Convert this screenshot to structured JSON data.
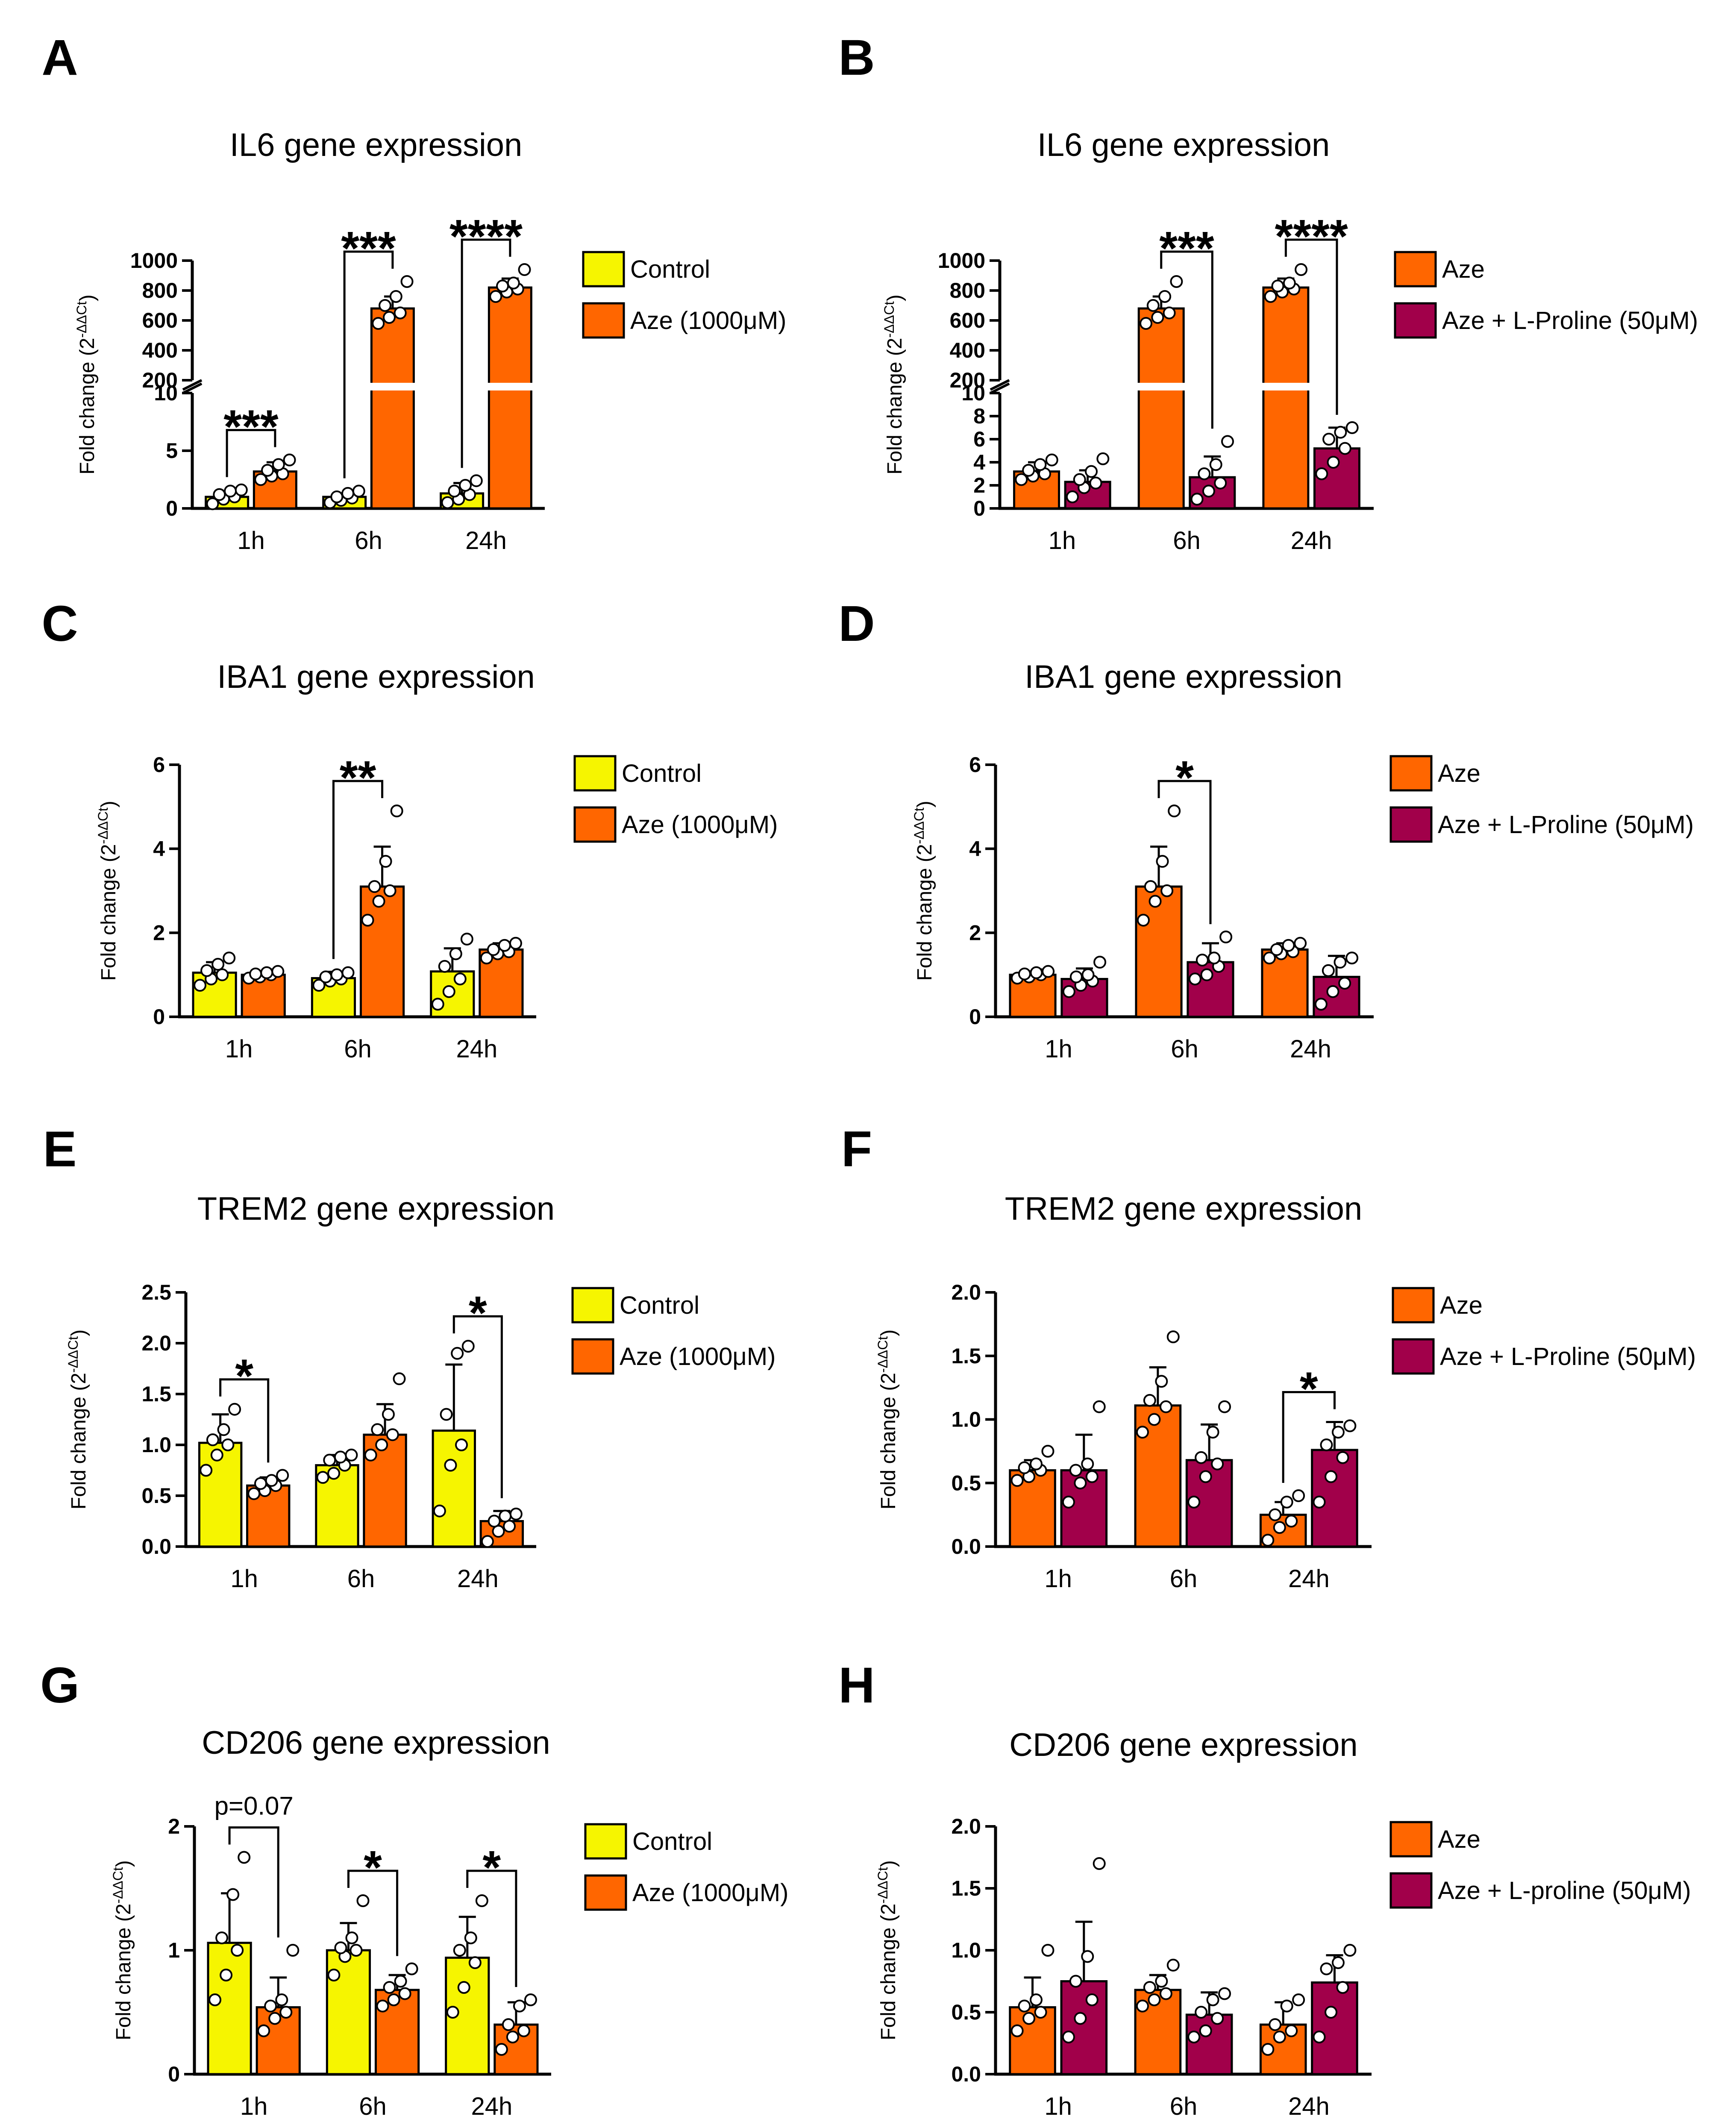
{
  "colors": {
    "control": "#f6f500",
    "aze": "#ff6600",
    "proline": "#a1004a",
    "axis": "#000000",
    "point_fill": "#ffffff"
  },
  "y_axis_label": "Fold change (2",
  "y_axis_label_superscript": "-ΔΔCt",
  "y_axis_label_end": ")",
  "chart_data": [
    {
      "panel": "A",
      "type": "bar",
      "title": "IL6 gene expression",
      "categories": [
        "1h",
        "6h",
        "24h"
      ],
      "ylabel": "Fold change (2^-ΔΔCt)",
      "broken_axis": true,
      "ylim_lower": [
        0,
        10
      ],
      "yticks_lower": [
        0,
        5,
        10
      ],
      "ylim_upper": [
        200,
        1000
      ],
      "yticks_upper": [
        200,
        400,
        600,
        800,
        1000
      ],
      "series": [
        {
          "name": "Control",
          "color_key": "control",
          "values": [
            1.0,
            1.0,
            1.3
          ],
          "errors": [
            0.5,
            0.3,
            0.9
          ],
          "points": [
            [
              0.4,
              0.8,
              1.0,
              1.2,
              1.5,
              1.6
            ],
            [
              0.5,
              0.7,
              0.9,
              1.0,
              1.3,
              1.5
            ],
            [
              0.5,
              0.8,
              1.2,
              1.5,
              2.0,
              2.4
            ]
          ]
        },
        {
          "name": "Aze (1000μM)",
          "color_key": "aze",
          "values": [
            3.2,
            680,
            820
          ],
          "errors": [
            0.8,
            80,
            60
          ],
          "points": [
            [
              2.5,
              2.8,
              3.0,
              3.3,
              3.8,
              4.2
            ],
            [
              580,
              620,
              650,
              700,
              760,
              860
            ],
            [
              760,
              790,
              810,
              830,
              850,
              940
            ]
          ]
        }
      ],
      "comparisons": [
        {
          "group": 0,
          "label": "***"
        },
        {
          "group": 1,
          "label": "***"
        },
        {
          "group": 2,
          "label": "****"
        }
      ]
    },
    {
      "panel": "B",
      "type": "bar",
      "title": "IL6 gene expression",
      "categories": [
        "1h",
        "6h",
        "24h"
      ],
      "ylabel": "Fold change (2^-ΔΔCt)",
      "broken_axis": true,
      "ylim_lower": [
        0,
        10
      ],
      "yticks_lower": [
        0,
        2,
        4,
        6,
        8,
        10
      ],
      "ylim_upper": [
        200,
        1000
      ],
      "yticks_upper": [
        200,
        400,
        600,
        800,
        1000
      ],
      "series": [
        {
          "name": "Aze",
          "color_key": "aze",
          "values": [
            3.2,
            680,
            820
          ],
          "errors": [
            0.8,
            80,
            60
          ],
          "points": [
            [
              2.5,
              2.8,
              3.0,
              3.3,
              3.8,
              4.2
            ],
            [
              580,
              620,
              650,
              700,
              760,
              860
            ],
            [
              760,
              790,
              810,
              830,
              850,
              940
            ]
          ]
        },
        {
          "name": "Aze + L-Proline (50μM)",
          "color_key": "proline",
          "values": [
            2.3,
            2.7,
            5.2
          ],
          "errors": [
            1.0,
            1.8,
            1.8
          ],
          "points": [
            [
              1.0,
              1.8,
              2.2,
              2.5,
              3.2,
              4.3
            ],
            [
              0.8,
              1.5,
              2.2,
              3.0,
              3.8,
              5.8
            ],
            [
              3.0,
              4.0,
              5.2,
              6.0,
              6.6,
              7.0
            ]
          ]
        }
      ],
      "comparisons": [
        {
          "group": 1,
          "label": "***"
        },
        {
          "group": 2,
          "label": "****"
        }
      ]
    },
    {
      "panel": "C",
      "type": "bar",
      "title": "IBA1 gene expression",
      "categories": [
        "1h",
        "6h",
        "24h"
      ],
      "ylabel": "Fold change (2^-ΔΔCt)",
      "ylim": [
        0,
        6
      ],
      "yticks": [
        0,
        2,
        4,
        6
      ],
      "series": [
        {
          "name": "Control",
          "color_key": "control",
          "values": [
            1.05,
            0.92,
            1.08
          ],
          "errors": [
            0.25,
            0.15,
            0.55
          ],
          "points": [
            [
              0.75,
              0.9,
              1.0,
              1.1,
              1.25,
              1.4
            ],
            [
              0.75,
              0.85,
              0.9,
              0.95,
              1.0,
              1.05
            ],
            [
              0.3,
              0.6,
              0.9,
              1.2,
              1.5,
              1.85
            ]
          ]
        },
        {
          "name": "Aze (1000μM)",
          "color_key": "aze",
          "values": [
            1.0,
            3.1,
            1.6
          ],
          "errors": [
            0.08,
            0.95,
            0.15
          ],
          "points": [
            [
              0.92,
              0.95,
              1.0,
              1.02,
              1.05,
              1.08
            ],
            [
              2.3,
              2.75,
              3.0,
              3.1,
              3.7,
              4.9
            ],
            [
              1.4,
              1.5,
              1.55,
              1.6,
              1.7,
              1.75
            ]
          ]
        }
      ],
      "comparisons": [
        {
          "group": 1,
          "label": "**"
        }
      ]
    },
    {
      "panel": "D",
      "type": "bar",
      "title": "IBA1 gene expression",
      "categories": [
        "1h",
        "6h",
        "24h"
      ],
      "ylabel": "Fold change (2^-ΔΔCt)",
      "ylim": [
        0,
        6
      ],
      "yticks": [
        0,
        2,
        4,
        6
      ],
      "series": [
        {
          "name": "Aze",
          "color_key": "aze",
          "values": [
            1.0,
            3.1,
            1.6
          ],
          "errors": [
            0.08,
            0.95,
            0.15
          ],
          "points": [
            [
              0.92,
              0.95,
              1.0,
              1.02,
              1.05,
              1.08
            ],
            [
              2.3,
              2.75,
              3.0,
              3.1,
              3.7,
              4.9
            ],
            [
              1.4,
              1.5,
              1.55,
              1.6,
              1.7,
              1.75
            ]
          ]
        },
        {
          "name": "Aze + L-Proline (50μM)",
          "color_key": "proline",
          "values": [
            0.9,
            1.3,
            0.95
          ],
          "errors": [
            0.25,
            0.45,
            0.5
          ],
          "points": [
            [
              0.6,
              0.75,
              0.85,
              0.95,
              1.0,
              1.3
            ],
            [
              0.9,
              1.0,
              1.2,
              1.35,
              1.4,
              1.9
            ],
            [
              0.3,
              0.6,
              0.8,
              1.1,
              1.3,
              1.4
            ]
          ]
        }
      ],
      "comparisons": [
        {
          "group": 1,
          "label": "*"
        }
      ]
    },
    {
      "panel": "E",
      "type": "bar",
      "title": "TREM2 gene expression",
      "categories": [
        "1h",
        "6h",
        "24h"
      ],
      "ylabel": "Fold change (2^-ΔΔCt)",
      "ylim": [
        0,
        2.5
      ],
      "yticks": [
        0.0,
        0.5,
        1.0,
        1.5,
        2.0,
        2.5
      ],
      "tick_decimals": 1,
      "series": [
        {
          "name": "Control",
          "color_key": "control",
          "values": [
            1.02,
            0.8,
            1.14
          ],
          "errors": [
            0.28,
            0.1,
            0.65
          ],
          "points": [
            [
              0.75,
              0.9,
              1.0,
              1.05,
              1.15,
              1.35
            ],
            [
              0.68,
              0.72,
              0.8,
              0.85,
              0.88,
              0.9
            ],
            [
              0.35,
              0.8,
              1.0,
              1.3,
              1.9,
              1.97
            ]
          ]
        },
        {
          "name": "Aze (1000μM)",
          "color_key": "aze",
          "values": [
            0.6,
            1.1,
            0.25
          ],
          "errors": [
            0.08,
            0.3,
            0.1
          ],
          "points": [
            [
              0.52,
              0.55,
              0.6,
              0.62,
              0.65,
              0.7
            ],
            [
              0.9,
              1.0,
              1.1,
              1.15,
              1.3,
              1.65
            ],
            [
              0.05,
              0.15,
              0.2,
              0.25,
              0.3,
              0.32
            ]
          ]
        }
      ],
      "comparisons": [
        {
          "group": 0,
          "label": "*"
        },
        {
          "group": 2,
          "label": "*"
        }
      ]
    },
    {
      "panel": "F",
      "type": "bar",
      "title": "TREM2 gene expression",
      "categories": [
        "1h",
        "6h",
        "24h"
      ],
      "ylabel": "Fold change (2^-ΔΔCt)",
      "ylim": [
        0,
        2.0
      ],
      "yticks": [
        0.0,
        0.5,
        1.0,
        1.5,
        2.0
      ],
      "tick_decimals": 1,
      "series": [
        {
          "name": "Aze",
          "color_key": "aze",
          "values": [
            0.6,
            1.11,
            0.25
          ],
          "errors": [
            0.08,
            0.3,
            0.1
          ],
          "points": [
            [
              0.52,
              0.55,
              0.6,
              0.62,
              0.65,
              0.75
            ],
            [
              0.9,
              1.0,
              1.1,
              1.15,
              1.3,
              1.65
            ],
            [
              0.05,
              0.15,
              0.2,
              0.25,
              0.35,
              0.4
            ]
          ]
        },
        {
          "name": "Aze + L-Proline (50μM)",
          "color_key": "proline",
          "values": [
            0.6,
            0.68,
            0.76
          ],
          "errors": [
            0.28,
            0.28,
            0.22
          ],
          "points": [
            [
              0.35,
              0.5,
              0.55,
              0.6,
              0.65,
              1.1
            ],
            [
              0.35,
              0.55,
              0.65,
              0.7,
              0.9,
              1.1
            ],
            [
              0.35,
              0.55,
              0.7,
              0.8,
              0.9,
              0.95
            ]
          ]
        }
      ],
      "comparisons": [
        {
          "group": 2,
          "label": "*"
        }
      ]
    },
    {
      "panel": "G",
      "type": "bar",
      "title": "CD206 gene expression",
      "categories": [
        "1h",
        "6h",
        "24h"
      ],
      "ylabel": "Fold change (2^-ΔΔCt)",
      "ylim": [
        0,
        2
      ],
      "yticks": [
        0,
        1,
        2
      ],
      "series": [
        {
          "name": "Control",
          "color_key": "control",
          "values": [
            1.06,
            1.0,
            0.94
          ],
          "errors": [
            0.4,
            0.22,
            0.33
          ],
          "points": [
            [
              0.6,
              0.8,
              1.0,
              1.1,
              1.45,
              1.75
            ],
            [
              0.8,
              0.95,
              1.0,
              1.02,
              1.1,
              1.4
            ],
            [
              0.5,
              0.7,
              0.9,
              1.0,
              1.1,
              1.4
            ]
          ]
        },
        {
          "name": "Aze (1000μM)",
          "color_key": "aze",
          "values": [
            0.54,
            0.68,
            0.4
          ],
          "errors": [
            0.24,
            0.12,
            0.18
          ],
          "points": [
            [
              0.35,
              0.45,
              0.5,
              0.55,
              0.6,
              1.0
            ],
            [
              0.55,
              0.6,
              0.65,
              0.7,
              0.75,
              0.85
            ],
            [
              0.2,
              0.3,
              0.35,
              0.4,
              0.55,
              0.6
            ]
          ]
        }
      ],
      "comparisons": [
        {
          "group": 0,
          "label": "p=0.07"
        },
        {
          "group": 1,
          "label": "*"
        },
        {
          "group": 2,
          "label": "*"
        }
      ]
    },
    {
      "panel": "H",
      "type": "bar",
      "title": "CD206 gene expression",
      "categories": [
        "1h",
        "6h",
        "24h"
      ],
      "ylabel": "Fold change (2^-ΔΔCt)",
      "ylim": [
        0,
        2.0
      ],
      "yticks": [
        0.0,
        0.5,
        1.0,
        1.5,
        2.0
      ],
      "tick_decimals": 1,
      "series": [
        {
          "name": "Aze",
          "color_key": "aze",
          "values": [
            0.54,
            0.68,
            0.4
          ],
          "errors": [
            0.24,
            0.12,
            0.18
          ],
          "points": [
            [
              0.35,
              0.45,
              0.5,
              0.55,
              0.6,
              1.0
            ],
            [
              0.55,
              0.6,
              0.65,
              0.7,
              0.75,
              0.88
            ],
            [
              0.2,
              0.3,
              0.35,
              0.4,
              0.55,
              0.6
            ]
          ]
        },
        {
          "name": "Aze + L-proline (50μM)",
          "color_key": "proline",
          "values": [
            0.75,
            0.48,
            0.74
          ],
          "errors": [
            0.48,
            0.18,
            0.22
          ],
          "points": [
            [
              0.3,
              0.45,
              0.6,
              0.75,
              0.95,
              1.7
            ],
            [
              0.3,
              0.35,
              0.45,
              0.5,
              0.6,
              0.65
            ],
            [
              0.3,
              0.5,
              0.7,
              0.85,
              0.9,
              1.0
            ]
          ]
        }
      ],
      "comparisons": []
    }
  ]
}
